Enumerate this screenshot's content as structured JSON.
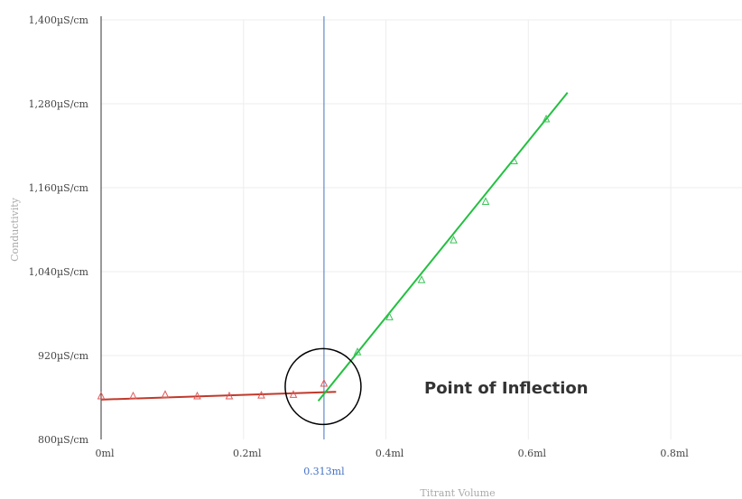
{
  "chart_data": {
    "type": "scatter",
    "xlabel": "Titrant Volume",
    "ylabel": "Conductivity",
    "x_unit": "ml",
    "y_unit": "µS/cm",
    "xlim": [
      0,
      0.9
    ],
    "ylim": [
      800,
      1400
    ],
    "x_ticks": [
      0,
      0.2,
      0.4,
      0.6,
      0.8
    ],
    "x_tick_labels": [
      "0ml",
      "0.2ml",
      "0.4ml",
      "0.6ml",
      "0.8ml"
    ],
    "y_ticks": [
      800,
      920,
      1040,
      1160,
      1280,
      1400
    ],
    "y_tick_labels": [
      "800µS/cm",
      "920µS/cm",
      "1,040µS/cm",
      "1,160µS/cm",
      "1,280µS/cm",
      "1,400µS/cm"
    ],
    "grid": true,
    "series": [
      {
        "color": "#e05a5a",
        "marker": "triangle",
        "points": [
          {
            "x": 0.0,
            "y": 862
          },
          {
            "x": 0.045,
            "y": 862
          },
          {
            "x": 0.09,
            "y": 864
          },
          {
            "x": 0.135,
            "y": 862
          },
          {
            "x": 0.18,
            "y": 862
          },
          {
            "x": 0.225,
            "y": 863
          },
          {
            "x": 0.27,
            "y": 864
          },
          {
            "x": 0.313,
            "y": 880
          }
        ],
        "fit": {
          "x": [
            0.0,
            0.33
          ],
          "y": [
            857,
            868
          ],
          "color": "#c0392b"
        }
      },
      {
        "color": "#3cc45a",
        "marker": "triangle",
        "points": [
          {
            "x": 0.36,
            "y": 925
          },
          {
            "x": 0.405,
            "y": 975
          },
          {
            "x": 0.45,
            "y": 1028
          },
          {
            "x": 0.495,
            "y": 1085
          },
          {
            "x": 0.54,
            "y": 1140
          },
          {
            "x": 0.58,
            "y": 1198
          },
          {
            "x": 0.625,
            "y": 1258
          }
        ],
        "fit": {
          "x": [
            0.305,
            0.655
          ],
          "y": [
            855,
            1296
          ],
          "color": "#22c040"
        }
      }
    ],
    "vertical_line": {
      "x": 0.313,
      "label": "0.313ml",
      "color": "#4472c4"
    },
    "annotation": {
      "text": "Point of Inflection",
      "circle_center": {
        "x": 0.313,
        "y": 873
      }
    }
  }
}
